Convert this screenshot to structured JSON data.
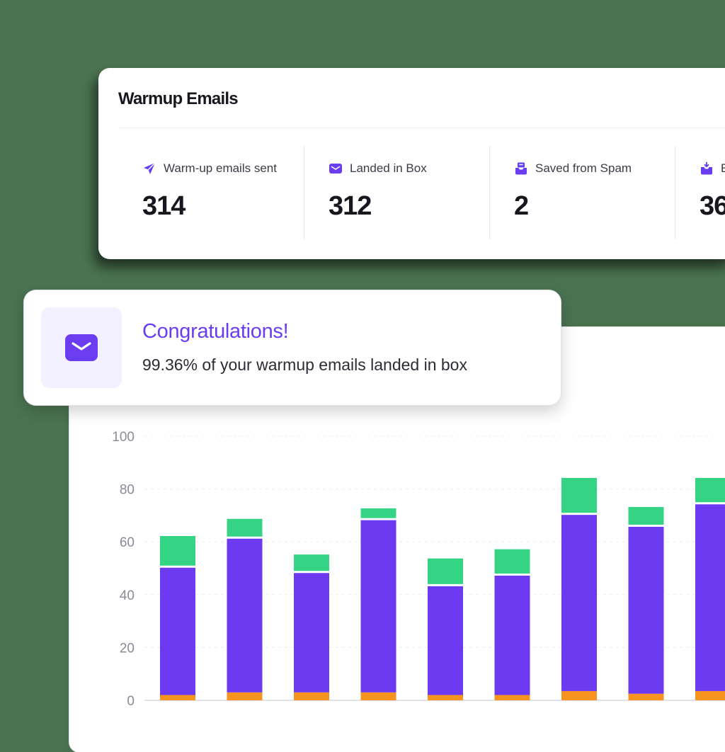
{
  "warmup": {
    "title": "Warmup Emails",
    "stats": [
      {
        "label": "Warm-up emails sent",
        "value": "314",
        "icon": "paper-plane-icon"
      },
      {
        "label": "Landed in Box",
        "value": "312",
        "icon": "envelope-icon"
      },
      {
        "label": "Saved from Spam",
        "value": "2",
        "icon": "inbox-tray-icon"
      },
      {
        "label": "E",
        "value": "36",
        "icon": "inbox-download-icon"
      }
    ]
  },
  "toast": {
    "title": "Congratulations!",
    "message": "99.36% of your warmup emails landed in box",
    "icon": "envelope-icon"
  },
  "colors": {
    "accent": "#6a3df0",
    "bar_main": "#6c3af0",
    "bar_top": "#34d484",
    "bar_bottom": "#f7931e",
    "background": "#4a7350"
  },
  "chart_data": {
    "type": "bar",
    "stacked": true,
    "ylim": [
      0,
      100
    ],
    "yticks": [
      0,
      20,
      40,
      60,
      80,
      100
    ],
    "grid": true,
    "categories": [
      "",
      "",
      "",
      "",
      "",
      "",
      "",
      "",
      ""
    ],
    "series": [
      {
        "color": "#f7931e",
        "values": [
          2,
          3,
          3,
          3,
          2,
          2,
          3.5,
          2.5,
          3.5
        ]
      },
      {
        "color": "#6c3af0",
        "values": [
          49,
          59,
          46,
          66,
          42,
          46,
          67.5,
          64,
          71.5
        ]
      },
      {
        "color": "#34d484",
        "values": [
          12,
          7.5,
          7,
          4.5,
          10.5,
          10,
          14,
          7.5,
          10
        ]
      }
    ]
  }
}
